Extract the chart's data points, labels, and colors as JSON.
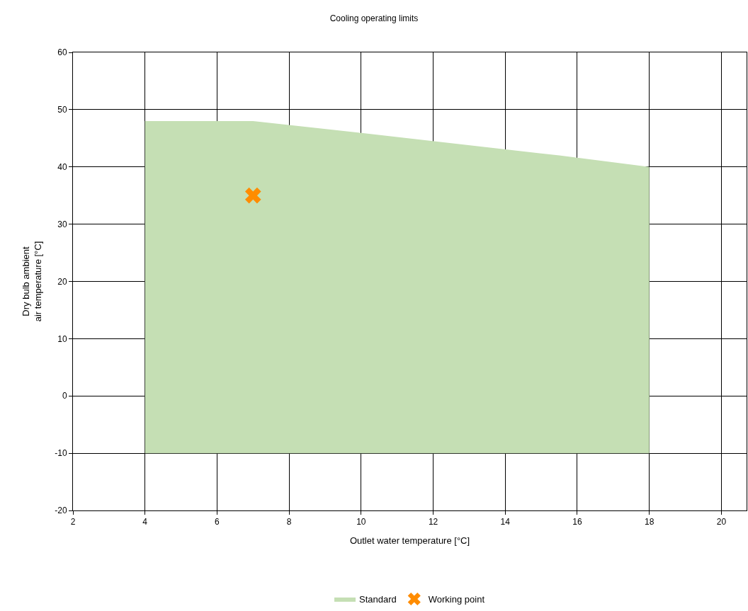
{
  "chart_data": {
    "type": "area",
    "title": "Cooling operating limits",
    "xlabel": "Outlet water temperature [°C]",
    "ylabel": "Dry bulb ambient air temperature [°C]",
    "xlim": [
      2,
      20.7
    ],
    "xticks": [
      2,
      4,
      6,
      8,
      10,
      12,
      14,
      16,
      18,
      20
    ],
    "ylim": [
      -20,
      60
    ],
    "yticks": [
      -20,
      -10,
      0,
      10,
      20,
      30,
      40,
      50,
      60
    ],
    "grid": true,
    "legend": "bottom",
    "series": [
      {
        "name": "Standard",
        "color": "#c5dfb4",
        "x": [
          4,
          4,
          7,
          9.2,
          15.5,
          18,
          18
        ],
        "values": [
          -10,
          48,
          48,
          46.5,
          42,
          40,
          -10
        ]
      },
      {
        "name": "Working point",
        "type": "scatter",
        "color": "#ff8c00",
        "marker": "cross",
        "x": [
          7
        ],
        "values": [
          35
        ]
      }
    ]
  }
}
